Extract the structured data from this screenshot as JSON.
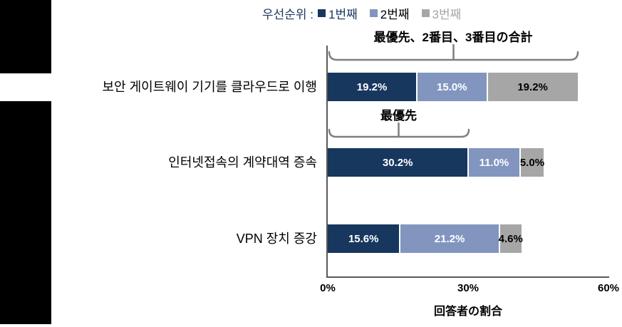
{
  "decor": {
    "left_strip_color": "#000000"
  },
  "legend": {
    "prefix": "우선순위 :",
    "items": [
      {
        "label": "1번째",
        "color": "#17375E",
        "text_color": "#17375E"
      },
      {
        "label": "2번째",
        "color": "#8295BF",
        "text_color": "#000000"
      },
      {
        "label": "3번째",
        "color": "#A6A6A6",
        "text_color": "#A6A6A6"
      }
    ]
  },
  "annotations": {
    "total_bracket": "最優先、2番目、3番目の合計",
    "top_priority_bracket": "最優先"
  },
  "chart_data": {
    "type": "bar",
    "orientation": "horizontal",
    "stacked": true,
    "title": "",
    "xlabel": "回答者の割合",
    "xlim": [
      0,
      60
    ],
    "x_ticks": [
      "0%",
      "30%",
      "60%"
    ],
    "grid": false,
    "legend_position": "top",
    "categories": [
      "보안 게이트웨이 기기를 클라우드로 이행",
      "인터넷접속의 계약대역 증속",
      "VPN 장치 증강"
    ],
    "series": [
      {
        "name": "1번째",
        "color": "#17375E",
        "label_color": "#FFFFFF",
        "values": [
          19.2,
          30.2,
          15.6
        ]
      },
      {
        "name": "2번째",
        "color": "#8295BF",
        "label_color": "#FFFFFF",
        "values": [
          15.0,
          11.0,
          21.2
        ]
      },
      {
        "name": "3번째",
        "color": "#A6A6A6",
        "label_color": "#000000",
        "values": [
          19.2,
          5.0,
          4.6
        ]
      }
    ]
  }
}
